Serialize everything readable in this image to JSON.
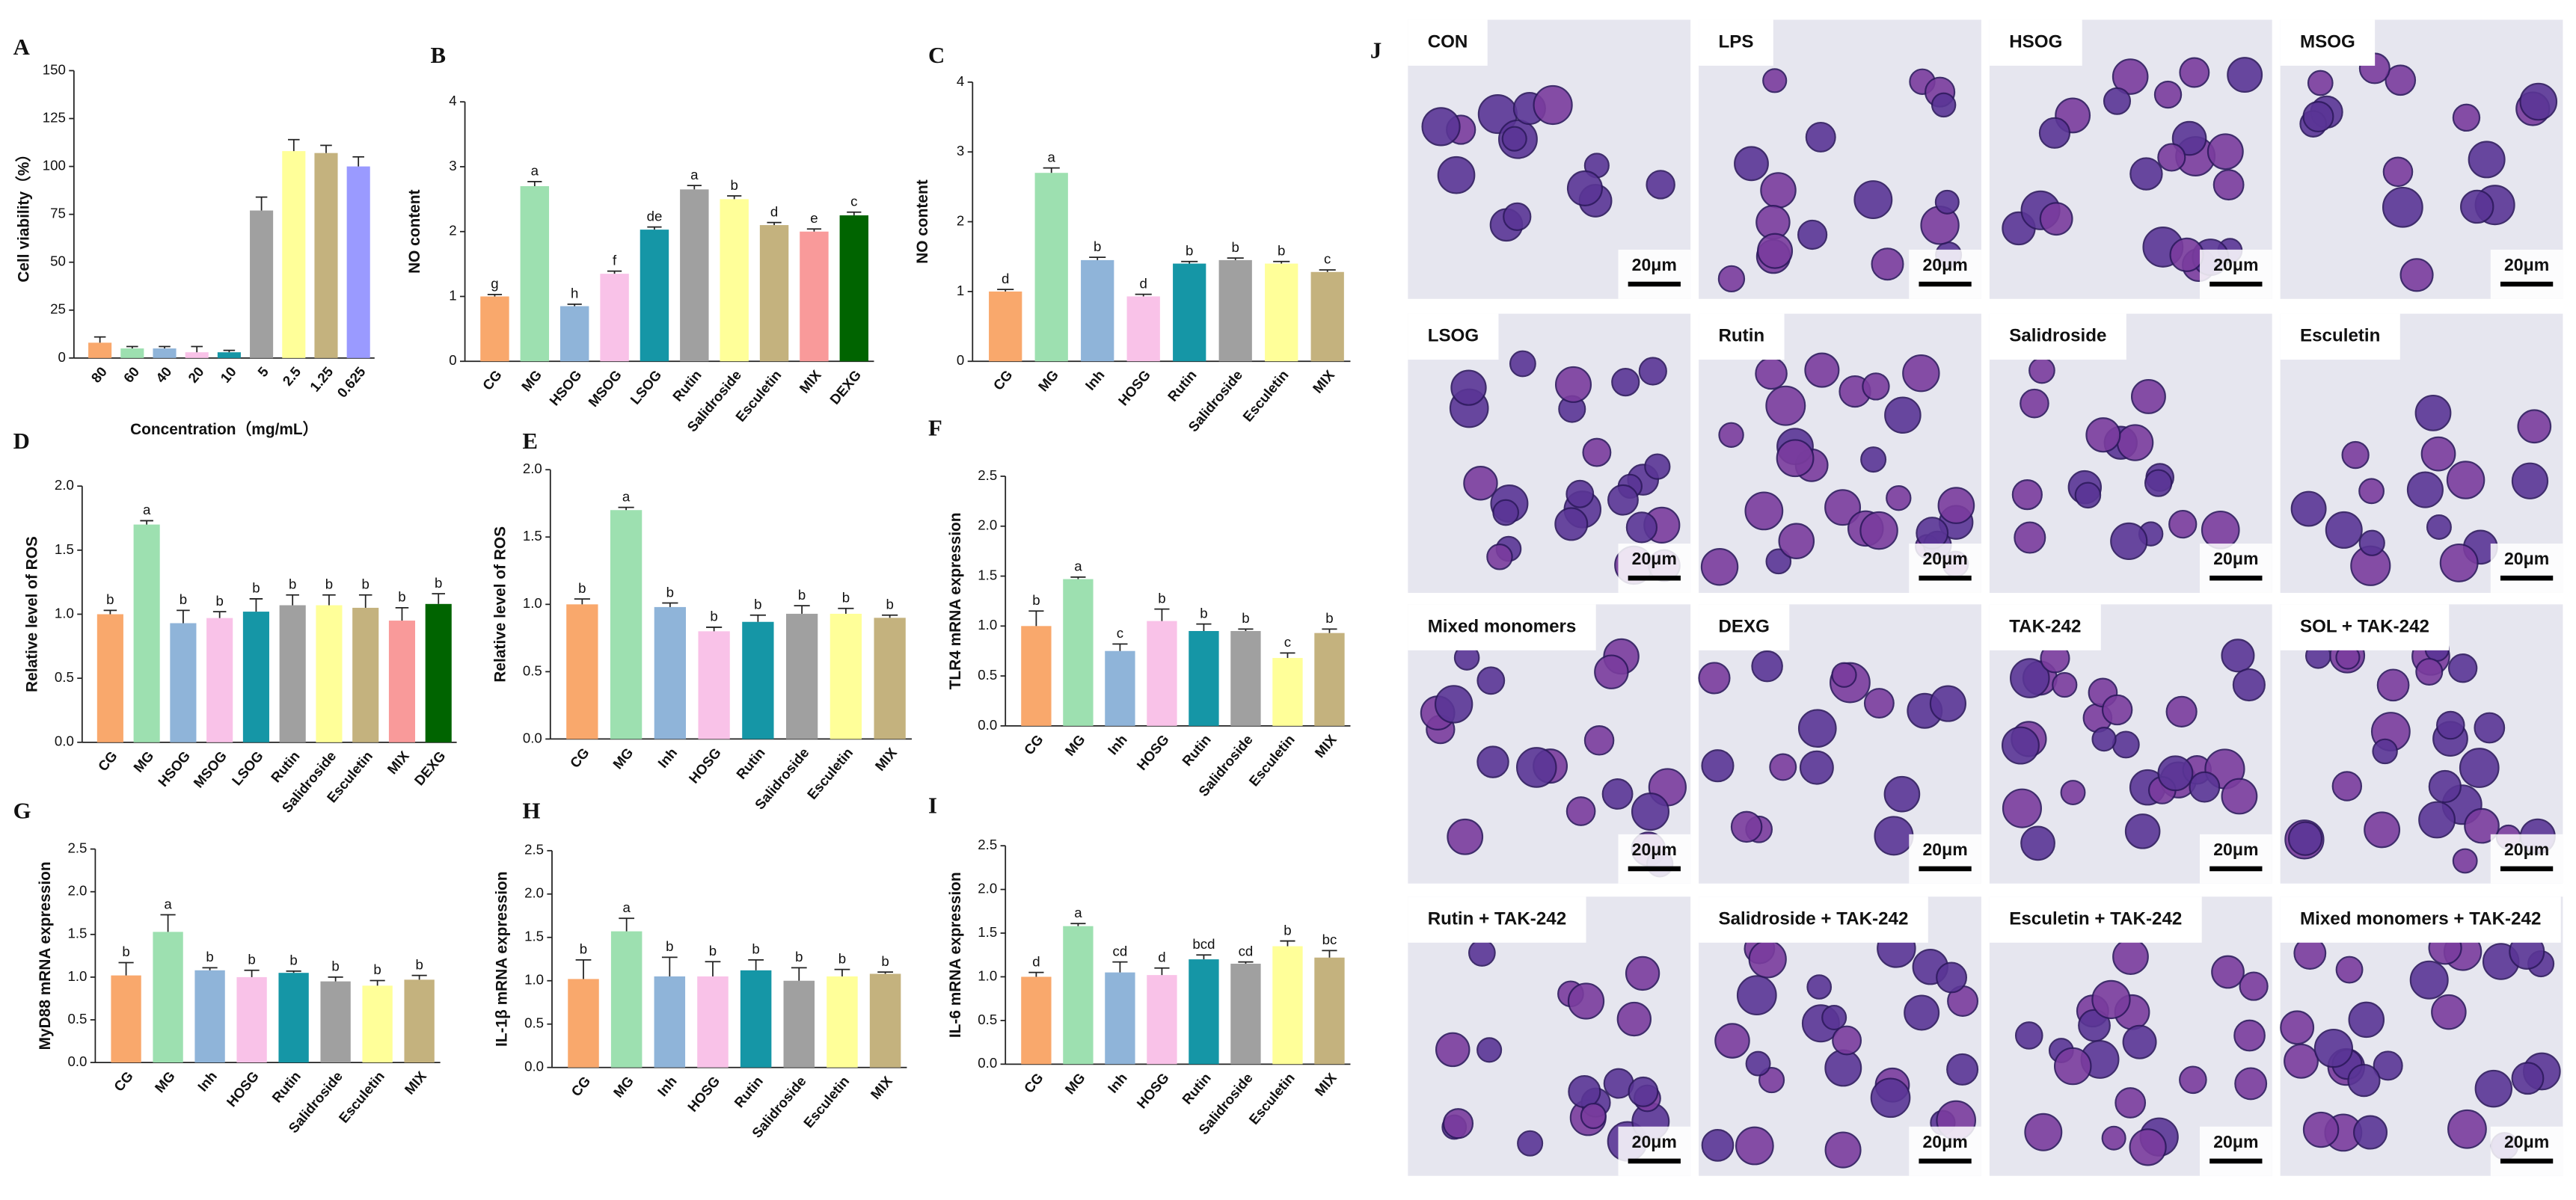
{
  "chart_data": [
    {
      "type": "bar",
      "label": "A",
      "ylabel": "Cell viability（%）",
      "xlabel": "Concentration（mg/mL）",
      "categories": [
        "80",
        "60",
        "40",
        "20",
        "10",
        "5",
        "2.5",
        "1.25",
        "0.625"
      ],
      "values": [
        8,
        5,
        5,
        3,
        3,
        77,
        108,
        107,
        100
      ],
      "errors": [
        3,
        1,
        1,
        3,
        1,
        7,
        6,
        4,
        5
      ],
      "colors": [
        "#f9a86c",
        "#9de0b0",
        "#8fb4d9",
        "#f9c2e8",
        "#1596a6",
        "#a0a0a0",
        "#ffff99",
        "#c4b27e",
        "#9a9aff"
      ],
      "ylim": [
        0,
        150
      ],
      "yticks": [
        0,
        25,
        50,
        75,
        100,
        125,
        150
      ]
    },
    {
      "type": "bar",
      "label": "B",
      "ylabel": "NO content",
      "categories": [
        "CG",
        "MG",
        "HSOG",
        "MSOG",
        "LSOG",
        "Rutin",
        "Salidroside",
        "Esculetin",
        "MIX",
        "DEXG"
      ],
      "values": [
        1.0,
        2.7,
        0.85,
        1.35,
        2.03,
        2.65,
        2.5,
        2.1,
        2.0,
        2.25
      ],
      "errors": [
        0.03,
        0.07,
        0.03,
        0.04,
        0.04,
        0.06,
        0.05,
        0.04,
        0.04,
        0.05
      ],
      "letters": [
        "g",
        "a",
        "h",
        "f",
        "de",
        "a",
        "b",
        "d",
        "e",
        "c"
      ],
      "colors": [
        "#f9a86c",
        "#9de0b0",
        "#8fb4d9",
        "#f9c2e8",
        "#1596a6",
        "#a0a0a0",
        "#ffff99",
        "#c4b27e",
        "#f99a9a",
        "#006400"
      ],
      "ylim": [
        0,
        4
      ],
      "yticks": [
        0,
        1,
        2,
        3,
        4
      ]
    },
    {
      "type": "bar",
      "label": "C",
      "ylabel": "NO content",
      "categories": [
        "CG",
        "MG",
        "Inh",
        "HOSG",
        "Rutin",
        "Salidroside",
        "Esculetin",
        "MIX"
      ],
      "values": [
        1.0,
        2.7,
        1.45,
        0.93,
        1.4,
        1.45,
        1.4,
        1.28
      ],
      "errors": [
        0.03,
        0.07,
        0.04,
        0.03,
        0.03,
        0.03,
        0.03,
        0.03
      ],
      "letters": [
        "d",
        "a",
        "b",
        "d",
        "b",
        "b",
        "b",
        "c"
      ],
      "colors": [
        "#f9a86c",
        "#9de0b0",
        "#8fb4d9",
        "#f9c2e8",
        "#1596a6",
        "#a0a0a0",
        "#ffff99",
        "#c4b27e"
      ],
      "ylim": [
        0,
        4
      ],
      "yticks": [
        0,
        1,
        2,
        3,
        4
      ]
    },
    {
      "type": "bar",
      "label": "D",
      "ylabel": "Relative level of ROS",
      "categories": [
        "CG",
        "MG",
        "HSOG",
        "MSOG",
        "LSOG",
        "Rutin",
        "Salidroside",
        "Esculetin",
        "MIX",
        "DEXG"
      ],
      "values": [
        1.0,
        1.7,
        0.93,
        0.97,
        1.02,
        1.07,
        1.07,
        1.05,
        0.95,
        1.08
      ],
      "errors": [
        0.03,
        0.03,
        0.1,
        0.05,
        0.1,
        0.08,
        0.08,
        0.1,
        0.1,
        0.08
      ],
      "letters": [
        "b",
        "a",
        "b",
        "b",
        "b",
        "b",
        "b",
        "b",
        "b",
        "b"
      ],
      "colors": [
        "#f9a86c",
        "#9de0b0",
        "#8fb4d9",
        "#f9c2e8",
        "#1596a6",
        "#a0a0a0",
        "#ffff99",
        "#c4b27e",
        "#f99a9a",
        "#006400"
      ],
      "ylim": [
        0,
        2
      ],
      "yticks": [
        {
          "value": 0,
          "label": "0.0"
        },
        0.5,
        {
          "value": 1,
          "label": "1.0"
        },
        1.5,
        {
          "value": 2,
          "label": "2.0"
        }
      ]
    },
    {
      "type": "bar",
      "label": "E",
      "ylabel": "Relative level of ROS",
      "categories": [
        "CG",
        "MG",
        "Inh",
        "HOSG",
        "Rutin",
        "Salidroside",
        "Esculetin",
        "MIX"
      ],
      "values": [
        1.0,
        1.7,
        0.98,
        0.8,
        0.87,
        0.93,
        0.93,
        0.9
      ],
      "errors": [
        0.04,
        0.02,
        0.03,
        0.03,
        0.05,
        0.06,
        0.04,
        0.02
      ],
      "letters": [
        "b",
        "a",
        "b",
        "b",
        "b",
        "b",
        "b",
        "b"
      ],
      "colors": [
        "#f9a86c",
        "#9de0b0",
        "#8fb4d9",
        "#f9c2e8",
        "#1596a6",
        "#a0a0a0",
        "#ffff99",
        "#c4b27e"
      ],
      "ylim": [
        0,
        2
      ],
      "yticks": [
        {
          "value": 0,
          "label": "0.0"
        },
        0.5,
        {
          "value": 1,
          "label": "1.0"
        },
        1.5,
        {
          "value": 2,
          "label": "2.0"
        }
      ]
    },
    {
      "type": "bar",
      "label": "F",
      "ylabel": "TLR4 mRNA expression",
      "categories": [
        "CG",
        "MG",
        "Inh",
        "HOSG",
        "Rutin",
        "Salidroside",
        "Esculetin",
        "MIX"
      ],
      "values": [
        1.0,
        1.47,
        0.75,
        1.05,
        0.95,
        0.95,
        0.68,
        0.93
      ],
      "errors": [
        0.15,
        0.02,
        0.07,
        0.12,
        0.07,
        0.02,
        0.05,
        0.04
      ],
      "letters": [
        "b",
        "a",
        "c",
        "b",
        "b",
        "b",
        "c",
        "b"
      ],
      "colors": [
        "#f9a86c",
        "#9de0b0",
        "#8fb4d9",
        "#f9c2e8",
        "#1596a6",
        "#a0a0a0",
        "#ffff99",
        "#c4b27e"
      ],
      "ylim": [
        0,
        2.5
      ],
      "yticks": [
        {
          "value": 0,
          "label": "0.0"
        },
        0.5,
        {
          "value": 1,
          "label": "1.0"
        },
        1.5,
        {
          "value": 2,
          "label": "2.0"
        },
        2.5
      ]
    },
    {
      "type": "bar",
      "label": "G",
      "ylabel": "MyD88 mRNA expression",
      "categories": [
        "CG",
        "MG",
        "Inh",
        "HOSG",
        "Rutin",
        "Salidroside",
        "Esculetin",
        "MIX"
      ],
      "values": [
        1.02,
        1.53,
        1.08,
        1.0,
        1.05,
        0.95,
        0.9,
        0.97
      ],
      "errors": [
        0.15,
        0.2,
        0.03,
        0.08,
        0.02,
        0.05,
        0.06,
        0.05
      ],
      "letters": [
        "b",
        "a",
        "b",
        "b",
        "b",
        "b",
        "b",
        "b"
      ],
      "colors": [
        "#f9a86c",
        "#9de0b0",
        "#8fb4d9",
        "#f9c2e8",
        "#1596a6",
        "#a0a0a0",
        "#ffff99",
        "#c4b27e"
      ],
      "ylim": [
        0,
        2.5
      ],
      "yticks": [
        {
          "value": 0,
          "label": "0.0"
        },
        0.5,
        {
          "value": 1,
          "label": "1.0"
        },
        1.5,
        {
          "value": 2,
          "label": "2.0"
        },
        2.5
      ]
    },
    {
      "type": "bar",
      "label": "H",
      "ylabel": "IL-1β mRNA expression",
      "categories": [
        "CG",
        "MG",
        "Inh",
        "HOSG",
        "Rutin",
        "Salidroside",
        "Esculetin",
        "MIX"
      ],
      "values": [
        1.02,
        1.57,
        1.05,
        1.05,
        1.12,
        1.0,
        1.05,
        1.08
      ],
      "errors": [
        0.22,
        0.15,
        0.22,
        0.17,
        0.12,
        0.15,
        0.08,
        0.02
      ],
      "letters": [
        "b",
        "a",
        "b",
        "b",
        "b",
        "b",
        "b",
        "b"
      ],
      "colors": [
        "#f9a86c",
        "#9de0b0",
        "#8fb4d9",
        "#f9c2e8",
        "#1596a6",
        "#a0a0a0",
        "#ffff99",
        "#c4b27e"
      ],
      "ylim": [
        0,
        2.5
      ],
      "yticks": [
        {
          "value": 0,
          "label": "0.0"
        },
        0.5,
        {
          "value": 1,
          "label": "1.0"
        },
        1.5,
        {
          "value": 2,
          "label": "2.0"
        },
        2.5
      ]
    },
    {
      "type": "bar",
      "label": "I",
      "ylabel": "IL-6 mRNA expression",
      "categories": [
        "CG",
        "MG",
        "Inh",
        "HOSG",
        "Rutin",
        "Salidroside",
        "Esculetin",
        "MIX"
      ],
      "values": [
        1.0,
        1.58,
        1.05,
        1.02,
        1.2,
        1.15,
        1.35,
        1.22
      ],
      "errors": [
        0.05,
        0.03,
        0.12,
        0.08,
        0.05,
        0.02,
        0.06,
        0.08
      ],
      "letters": [
        "d",
        "a",
        "cd",
        "d",
        "bcd",
        "cd",
        "b",
        "bc"
      ],
      "colors": [
        "#f9a86c",
        "#9de0b0",
        "#8fb4d9",
        "#f9c2e8",
        "#1596a6",
        "#a0a0a0",
        "#ffff99",
        "#c4b27e"
      ],
      "ylim": [
        0,
        2.5
      ],
      "yticks": [
        {
          "value": 0,
          "label": "0.0"
        },
        0.5,
        {
          "value": 1,
          "label": "1.0"
        },
        1.5,
        {
          "value": 2,
          "label": "2.0"
        },
        2.5
      ]
    }
  ],
  "micrographs": {
    "label": "J",
    "scale_bar": "20μm",
    "panels": [
      "CON",
      "LPS",
      "HSOG",
      "MSOG",
      "LSOG",
      "Rutin",
      "Salidroside",
      "Esculetin",
      "Mixed monomers",
      "DEXG",
      "TAK-242",
      "SOL + TAK-242",
      "Rutin + TAK-242",
      "Salidroside + TAK-242",
      "Esculetin + TAK-242",
      "Mixed monomers + TAK-242"
    ]
  }
}
